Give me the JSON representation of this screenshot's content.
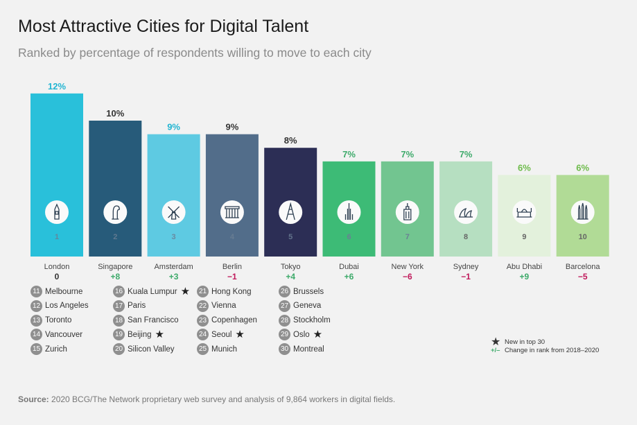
{
  "title": "Most Attractive Cities for Digital Talent",
  "subtitle": "Ranked by percentage of respondents willing to move to each city",
  "chart_data": {
    "type": "bar",
    "categories": [
      "London",
      "Singapore",
      "Amsterdam",
      "Berlin",
      "Tokyo",
      "Dubai",
      "New York",
      "Sydney",
      "Abu Dhabi",
      "Barcelona"
    ],
    "values": [
      12,
      10,
      9,
      9,
      8,
      7,
      7,
      7,
      6,
      6
    ],
    "value_labels": [
      "12%",
      "10%",
      "9%",
      "9%",
      "8%",
      "7%",
      "7%",
      "7%",
      "6%",
      "6%"
    ],
    "ranks": [
      "1",
      "2",
      "3",
      "4",
      "5",
      "6",
      "7",
      "8",
      "9",
      "10"
    ],
    "changes": [
      "0",
      "+8",
      "+3",
      "−1",
      "+4",
      "+6",
      "−6",
      "−1",
      "+9",
      "−5"
    ],
    "bar_colors": [
      "#29c0da",
      "#275b7a",
      "#5ecae2",
      "#526d8a",
      "#2c2e55",
      "#3dbb76",
      "#72c590",
      "#b6dfc1",
      "#e3f1dc",
      "#b1db96"
    ],
    "label_colors": [
      "#22b5d2",
      "#333333",
      "#22b5d2",
      "#333333",
      "#333333",
      "#3daa6a",
      "#3daa6a",
      "#3daa6a",
      "#6dbb4a",
      "#6dbb4a"
    ],
    "change_colors": [
      "#333333",
      "#3daa6a",
      "#3daa6a",
      "#c0185a",
      "#3daa6a",
      "#3daa6a",
      "#c0185a",
      "#c0185a",
      "#3daa6a",
      "#c0185a"
    ],
    "icons": [
      "big-ben-icon",
      "merlion-icon",
      "windmill-icon",
      "brandenburg-gate-icon",
      "tokyo-tower-icon",
      "burj-khalifa-icon",
      "empire-state-icon",
      "sydney-opera-icon",
      "grand-mosque-icon",
      "sagrada-familia-icon"
    ],
    "ylim": [
      0,
      12
    ]
  },
  "other_ranks": [
    {
      "num": "11",
      "city": "Melbourne",
      "new": false
    },
    {
      "num": "12",
      "city": "Los Angeles",
      "new": false
    },
    {
      "num": "13",
      "city": "Toronto",
      "new": false
    },
    {
      "num": "14",
      "city": "Vancouver",
      "new": false
    },
    {
      "num": "15",
      "city": "Zurich",
      "new": false
    },
    {
      "num": "16",
      "city": "Kuala Lumpur",
      "new": true
    },
    {
      "num": "17",
      "city": "Paris",
      "new": false
    },
    {
      "num": "18",
      "city": "San Francisco",
      "new": false
    },
    {
      "num": "19",
      "city": "Beijing",
      "new": true
    },
    {
      "num": "20",
      "city": "Silicon Valley",
      "new": false
    },
    {
      "num": "21",
      "city": "Hong Kong",
      "new": false
    },
    {
      "num": "22",
      "city": "Vienna",
      "new": false
    },
    {
      "num": "23",
      "city": "Copenhagen",
      "new": false
    },
    {
      "num": "24",
      "city": "Seoul",
      "new": true
    },
    {
      "num": "25",
      "city": "Munich",
      "new": false
    },
    {
      "num": "26",
      "city": "Brussels",
      "new": false
    },
    {
      "num": "27",
      "city": "Geneva",
      "new": false
    },
    {
      "num": "28",
      "city": "Stockholm",
      "new": false
    },
    {
      "num": "29",
      "city": "Oslo",
      "new": true
    },
    {
      "num": "30",
      "city": "Montreal",
      "new": false
    }
  ],
  "legend": {
    "new_label": "New in top 30",
    "change_symbol": "+/–",
    "change_label": "Change in rank from 2018–2020"
  },
  "source": {
    "prefix": "Source:",
    "text": " 2020 BCG/The Network proprietary web survey and analysis of 9,864 workers in digital fields."
  }
}
